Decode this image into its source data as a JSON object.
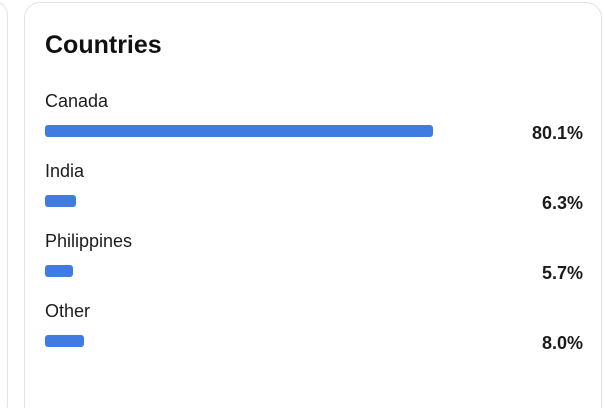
{
  "card": {
    "title": "Countries",
    "items": [
      {
        "label": "Canada",
        "value_text": "80.1%",
        "value": 80.1,
        "color": "#3f7be0"
      },
      {
        "label": "India",
        "value_text": "6.3%",
        "value": 6.3,
        "color": "#3f7be0"
      },
      {
        "label": "Philippines",
        "value_text": "5.7%",
        "value": 5.7,
        "color": "#3f7be0"
      },
      {
        "label": "Other",
        "value_text": "8.0%",
        "value": 8.0,
        "color": "#3f7be0"
      }
    ]
  }
}
